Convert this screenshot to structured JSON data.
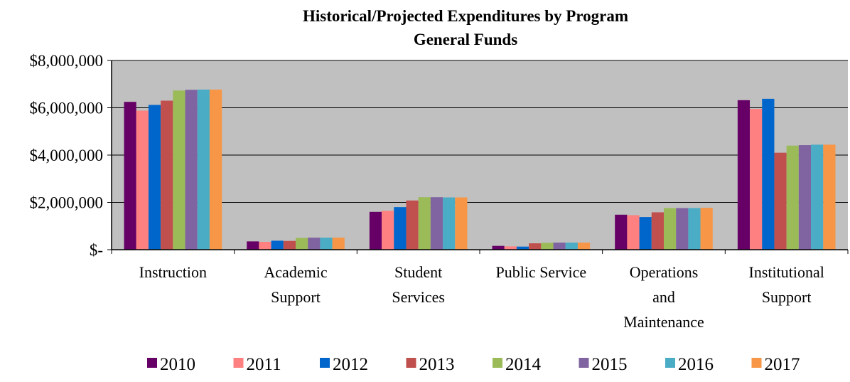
{
  "chart_data": {
    "type": "bar",
    "title": "Historical/Projected Expenditures by Program",
    "subtitle": "General Funds",
    "xlabel": "",
    "ylabel": "",
    "ylim": [
      0,
      8000000
    ],
    "y_ticks": [
      {
        "value": 0,
        "label": "$-"
      },
      {
        "value": 2000000,
        "label": "$2,000,000"
      },
      {
        "value": 4000000,
        "label": "$4,000,000"
      },
      {
        "value": 6000000,
        "label": "$6,000,000"
      },
      {
        "value": 8000000,
        "label": "$8,000,000"
      }
    ],
    "grid": true,
    "plot_background": "#c0c0c0",
    "legend_position": "bottom",
    "categories": [
      [
        "Instruction"
      ],
      [
        "Academic",
        "Support"
      ],
      [
        "Student",
        "Services"
      ],
      [
        "Public Service"
      ],
      [
        "Operations",
        "and",
        "Maintenance"
      ],
      [
        "Institutional",
        "Support"
      ]
    ],
    "series": [
      {
        "name": "2010",
        "color": "#660066",
        "values": [
          6250000,
          350000,
          1600000,
          160000,
          1480000,
          6320000
        ]
      },
      {
        "name": "2011",
        "color": "#ff8080",
        "values": [
          5880000,
          330000,
          1640000,
          140000,
          1460000,
          5950000
        ]
      },
      {
        "name": "2012",
        "color": "#0066cc",
        "values": [
          6120000,
          380000,
          1800000,
          130000,
          1380000,
          6380000
        ]
      },
      {
        "name": "2013",
        "color": "#c0504d",
        "values": [
          6300000,
          370000,
          2080000,
          270000,
          1580000,
          4100000
        ]
      },
      {
        "name": "2014",
        "color": "#9bbb59",
        "values": [
          6730000,
          500000,
          2220000,
          290000,
          1760000,
          4400000
        ]
      },
      {
        "name": "2015",
        "color": "#8064a2",
        "values": [
          6760000,
          510000,
          2220000,
          300000,
          1760000,
          4420000
        ]
      },
      {
        "name": "2016",
        "color": "#4bacc6",
        "values": [
          6770000,
          510000,
          2210000,
          300000,
          1760000,
          4440000
        ]
      },
      {
        "name": "2017",
        "color": "#f79646",
        "values": [
          6770000,
          510000,
          2210000,
          300000,
          1770000,
          4440000
        ]
      }
    ]
  }
}
